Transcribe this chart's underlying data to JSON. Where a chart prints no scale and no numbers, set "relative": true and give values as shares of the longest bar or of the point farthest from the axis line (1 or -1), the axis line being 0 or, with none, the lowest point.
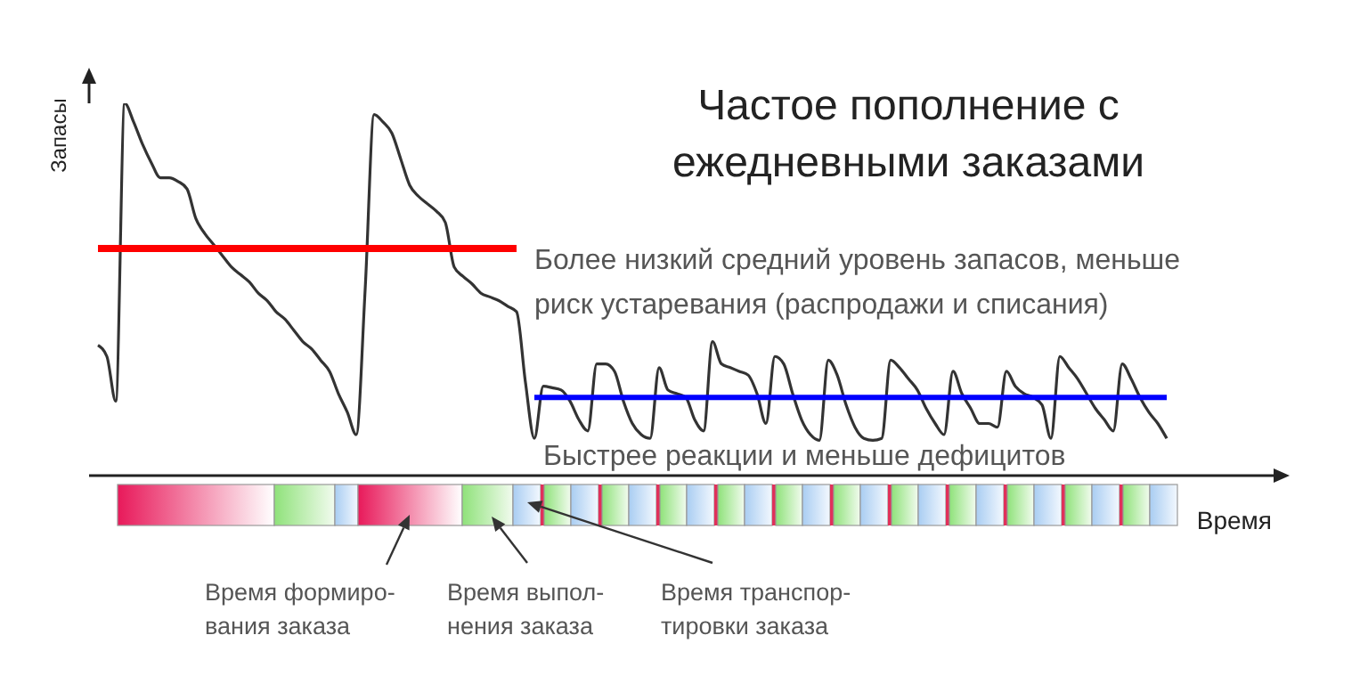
{
  "chart_data": {
    "type": "line",
    "relative": true,
    "title": "Частое пополнение с\nежедневными заказами",
    "xlabel": "Время",
    "ylabel": "Запасы",
    "categories": [
      null,
      null,
      null,
      null,
      null,
      null,
      null,
      null,
      null,
      null,
      null,
      null,
      null,
      null,
      null,
      null,
      null,
      null,
      null,
      null,
      null,
      null,
      null,
      null,
      null,
      null,
      null,
      null,
      null,
      null,
      null,
      null,
      null,
      null,
      null,
      null,
      null,
      null,
      null,
      null,
      null,
      null,
      null,
      null,
      null,
      null,
      null,
      null,
      null,
      null,
      null,
      null,
      null,
      null,
      null,
      null,
      null,
      null,
      null,
      null,
      null,
      null,
      null,
      null,
      null,
      null,
      null,
      null,
      null,
      null,
      null,
      null,
      null,
      null,
      null,
      null,
      null,
      null,
      null,
      null,
      null,
      null,
      null,
      null,
      null,
      null,
      null,
      null,
      null,
      null,
      null,
      null,
      null,
      null,
      null,
      null,
      null,
      null,
      null,
      null,
      null,
      null,
      null,
      null,
      null,
      null,
      null,
      null,
      null,
      null,
      null,
      null,
      null,
      null,
      null,
      null,
      null,
      null,
      null,
      null,
      null
    ],
    "series": [
      {
        "color": "#333333",
        "values": [
          0.35,
          0.32,
          0.2,
          1,
          0.95,
          0.89,
          0.84,
          0.8,
          0.8,
          0.79,
          0.77,
          0.69,
          0.65,
          0.62,
          0.59,
          0.56,
          0.54,
          0.52,
          0.49,
          0.47,
          0.44,
          0.42,
          0.39,
          0.36,
          0.34,
          0.31,
          0.28,
          0.22,
          0.17,
          0.11,
          0.5,
          0.97,
          0.95,
          0.92,
          0.85,
          0.78,
          0.75,
          0.73,
          0.71,
          0.68,
          0.56,
          0.535,
          0.515,
          0.49,
          0.48,
          0.47,
          0.455,
          0.44,
          0.25,
          0.1,
          0.24,
          0.236,
          0.23,
          0.2,
          0.15,
          0.12,
          0.3,
          0.3,
          0.28,
          0.2,
          0.14,
          0.11,
          0.1,
          0.29,
          0.23,
          0.22,
          0.21,
          0.15,
          0.12,
          0.36,
          0.3,
          0.29,
          0.28,
          0.27,
          0.22,
          0.14,
          0.32,
          0.3,
          0.22,
          0.15,
          0.11,
          0.095,
          0.31,
          0.27,
          0.19,
          0.13,
          0.1,
          0.095,
          0.1,
          0.31,
          0.29,
          0.26,
          0.23,
          0.18,
          0.14,
          0.11,
          0.28,
          0.22,
          0.18,
          0.14,
          0.14,
          0.13,
          0.28,
          0.24,
          0.22,
          0.21,
          0.19,
          0.1,
          0.32,
          0.29,
          0.26,
          0.22,
          0.18,
          0.15,
          0.12,
          0.3,
          0.26,
          0.21,
          0.17,
          0.14,
          0.1
        ]
      },
      {
        "color": "#ff0000",
        "values": [
          0.61,
          0.61,
          0.61,
          0.61,
          0.61,
          0.61,
          0.61,
          0.61,
          0.61,
          0.61,
          0.61,
          0.61,
          0.61,
          0.61,
          0.61,
          0.61,
          0.61,
          0.61,
          0.61,
          0.61,
          0.61,
          0.61,
          0.61,
          0.61,
          0.61,
          0.61,
          0.61,
          0.61,
          0.61,
          0.61,
          0.61,
          0.61,
          0.61,
          0.61,
          0.61,
          0.61,
          0.61,
          0.61,
          0.61,
          0.61,
          0.61,
          0.61,
          0.61,
          0.61,
          0.61,
          0.61,
          0.61,
          0.61,
          null,
          null,
          null,
          null,
          null,
          null,
          null,
          null,
          null,
          null,
          null,
          null,
          null,
          null,
          null,
          null,
          null,
          null,
          null,
          null,
          null,
          null,
          null,
          null,
          null,
          null,
          null,
          null,
          null,
          null,
          null,
          null,
          null,
          null,
          null,
          null,
          null,
          null,
          null,
          null,
          null,
          null,
          null,
          null,
          null,
          null,
          null,
          null,
          null,
          null,
          null,
          null,
          null,
          null,
          null,
          null,
          null,
          null,
          null,
          null,
          null,
          null,
          null,
          null,
          null,
          null,
          null,
          null,
          null,
          null,
          null,
          null,
          null
        ]
      },
      {
        "color": "#0000ff",
        "values": [
          null,
          null,
          null,
          null,
          null,
          null,
          null,
          null,
          null,
          null,
          null,
          null,
          null,
          null,
          null,
          null,
          null,
          null,
          null,
          null,
          null,
          null,
          null,
          null,
          null,
          null,
          null,
          null,
          null,
          null,
          null,
          null,
          null,
          null,
          null,
          null,
          null,
          null,
          null,
          null,
          null,
          null,
          null,
          null,
          null,
          null,
          null,
          null,
          null,
          0.21,
          0.21,
          0.21,
          0.21,
          0.21,
          0.21,
          0.21,
          0.21,
          0.21,
          0.21,
          0.21,
          0.21,
          0.21,
          0.21,
          0.21,
          0.21,
          0.21,
          0.21,
          0.21,
          0.21,
          0.21,
          0.21,
          0.21,
          0.21,
          0.21,
          0.21,
          0.21,
          0.21,
          0.21,
          0.21,
          0.21,
          0.21,
          0.21,
          0.21,
          0.21,
          0.21,
          0.21,
          0.21,
          0.21,
          0.21,
          0.21,
          0.21,
          0.21,
          0.21,
          0.21,
          0.21,
          0.21,
          0.21,
          0.21,
          0.21,
          0.21,
          0.21,
          0.21,
          0.21,
          0.21,
          0.21,
          0.21,
          0.21,
          0.21,
          0.21,
          0.21,
          0.21,
          0.21,
          0.21,
          0.21,
          0.21,
          0.21,
          0.21,
          0.21,
          0.21,
          0.21,
          0.21
        ]
      }
    ],
    "annotations": [
      "Более низкий средний уровень запасов, меньше\nриск устаревания (распродажи и списания)",
      "Быстрее реакции и меньше дефицитов",
      "Время формиро-\nвания заказа",
      "Время выпол-\nнения заказа",
      "Время транспор-\nтировки заказа"
    ]
  }
}
